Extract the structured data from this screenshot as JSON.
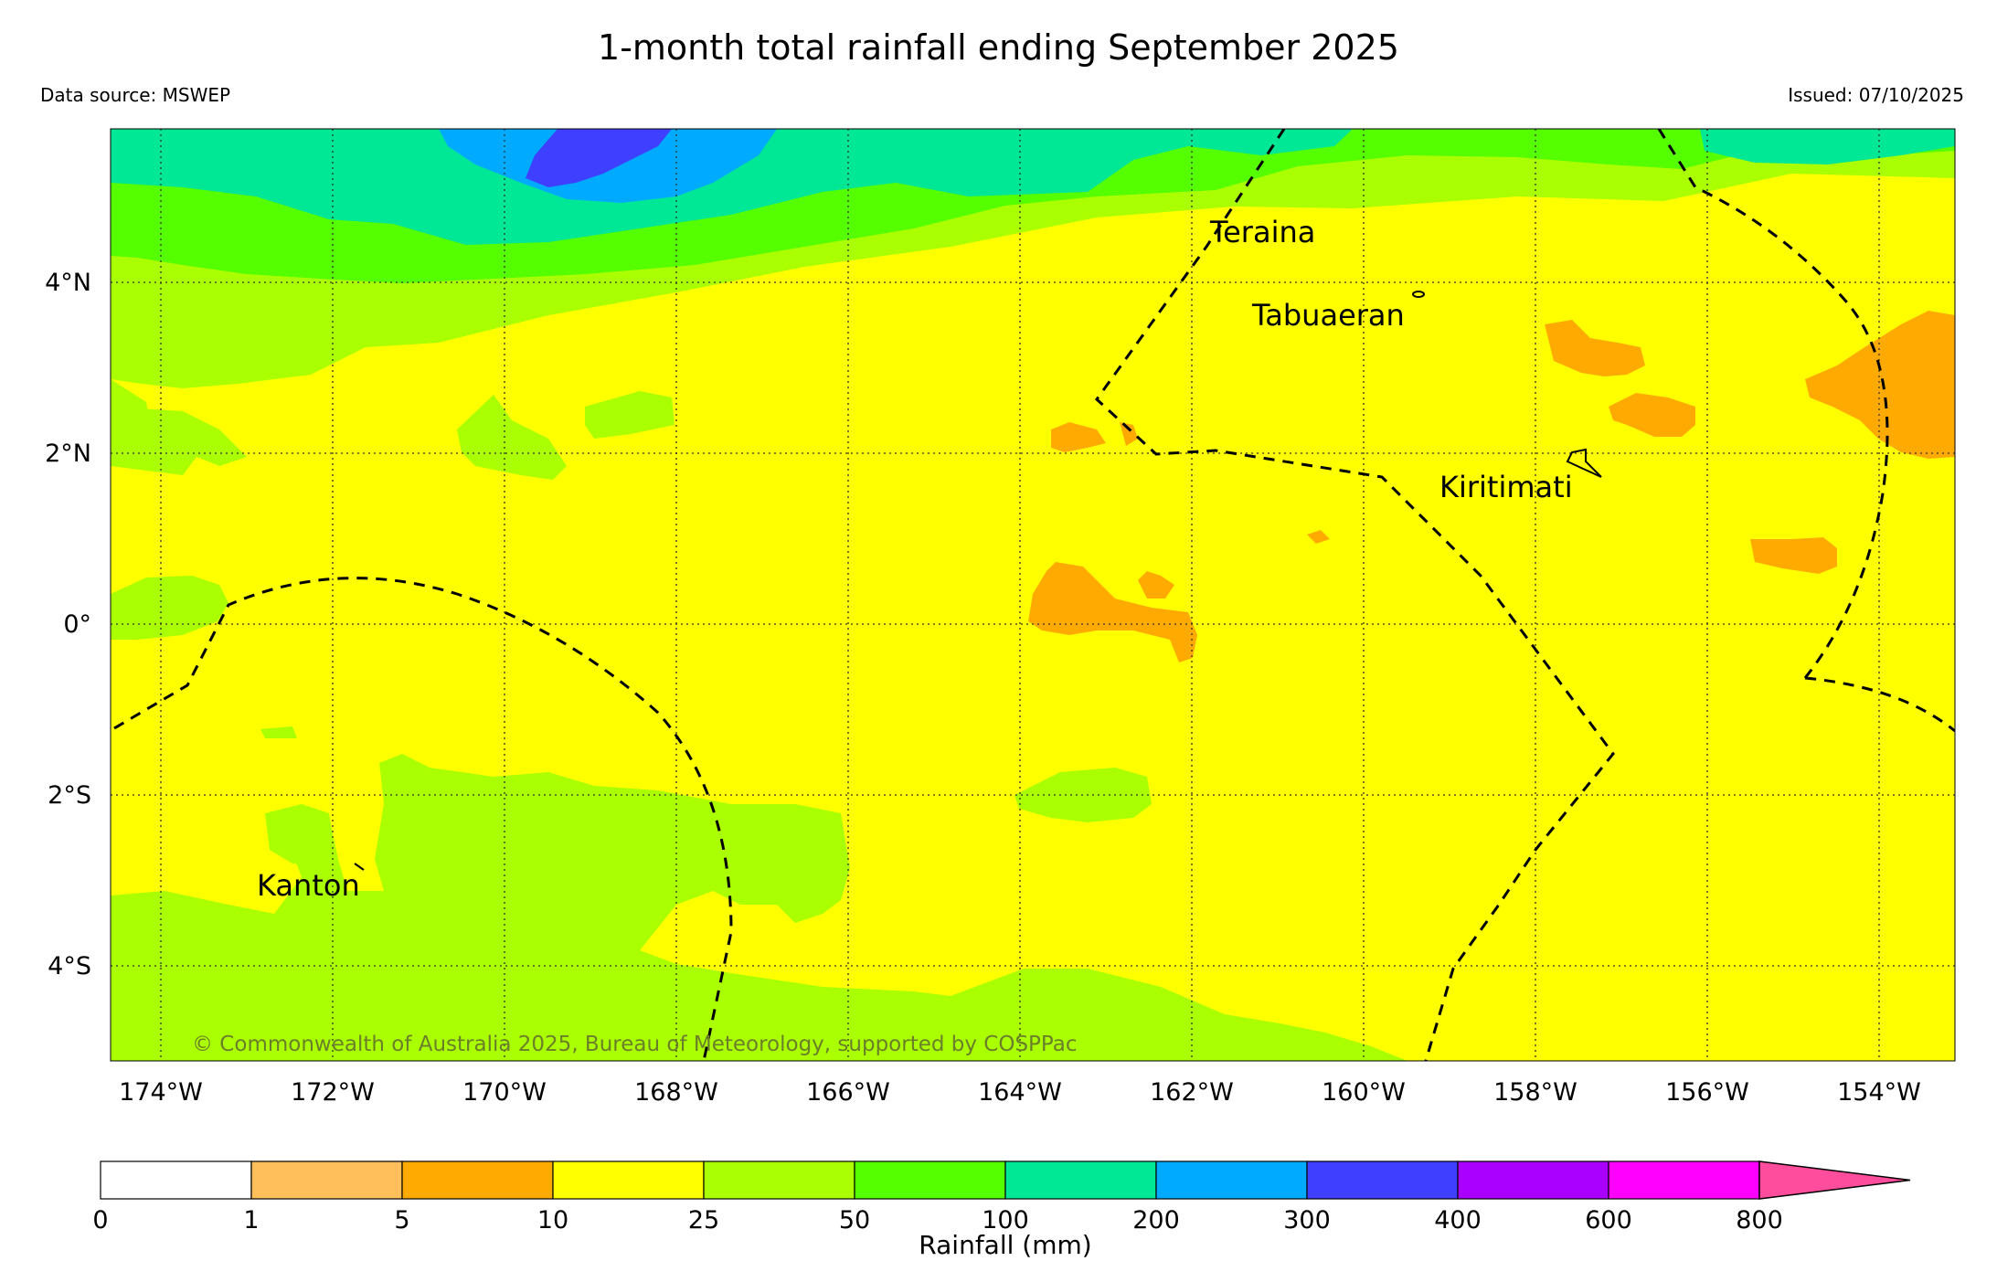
{
  "title": "1-month total rainfall ending September 2025",
  "data_source": "Data source: MSWEP",
  "issued": "Issued: 07/10/2025",
  "copyright": "© Commonwealth of Australia 2025, Bureau of Meteorology, supported by COSPPac",
  "lon_labels": [
    "174°W",
    "172°W",
    "170°W",
    "168°W",
    "166°W",
    "164°W",
    "162°W",
    "160°W",
    "158°W",
    "156°W",
    "154°W"
  ],
  "lat_labels": [
    "4°N",
    "2°N",
    "0°",
    "2°S",
    "4°S"
  ],
  "places": {
    "teraina": "Teraina",
    "tabuaeran": "Tabuaeran",
    "kiritimati": "Kiritimati",
    "kanton": "Kanton"
  },
  "colorbar": {
    "title": "Rainfall (mm)",
    "ticks": [
      "0",
      "1",
      "5",
      "10",
      "25",
      "50",
      "100",
      "200",
      "300",
      "400",
      "600",
      "800"
    ],
    "colors": [
      "#ffffff",
      "#ffbf5a",
      "#ffaa00",
      "#ffff00",
      "#aaff00",
      "#55ff00",
      "#00e796",
      "#00aaff",
      "#3f3fff",
      "#aa00ff",
      "#ff00ff",
      "#ff4d9e"
    ]
  },
  "map_colors": {
    "band_5_10": "#ffaa00",
    "band_10_25": "#ffff00",
    "band_25_50": "#aaff00",
    "band_50_100": "#55ff00",
    "band_100_200": "#00e796",
    "band_200_300": "#00aaff",
    "band_300_400": "#3f3fff"
  }
}
